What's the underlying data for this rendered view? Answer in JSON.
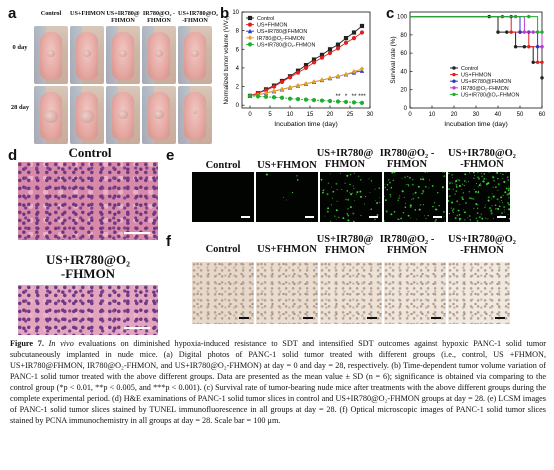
{
  "panel_letters": {
    "a": "a",
    "b": "b",
    "c": "c",
    "d": "d",
    "e": "e",
    "f": "f"
  },
  "panel_a": {
    "columns": [
      "Control",
      "US+FHMON",
      "US+IR780@ FHMON",
      "IR780@O₂ -FHMON",
      "US+IR780@O₂ -FHMON"
    ],
    "rows": [
      "0 day",
      "28 day"
    ]
  },
  "panel_e": {
    "columns": [
      "Control",
      "US+FHMON",
      "US+IR780@ FHMON",
      "IR780@O₂ -FHMON",
      "US+IR780@O₂ -FHMON"
    ]
  },
  "panel_f": {
    "columns": [
      "Control",
      "US+FHMON",
      "US+IR780@ FHMON",
      "IR780@O₂ -FHMON",
      "US+IR780@O₂ -FHMON"
    ]
  },
  "panel_d": {
    "top_title": "Control",
    "bottom_title_l1": "US+IR780@O₂",
    "bottom_title_l2": "-FHMON"
  },
  "chart_data": [
    {
      "type": "line",
      "panel": "b",
      "xlabel": "Incubation time (day)",
      "ylabel": "Normalized tumor volume (V/V₀)",
      "xlim": [
        -2,
        30
      ],
      "ylim": [
        -0.3,
        10
      ],
      "xticks": [
        0,
        5,
        10,
        15,
        20,
        25,
        30
      ],
      "yticks": [
        0,
        2,
        4,
        6,
        8,
        10
      ],
      "x": [
        0,
        2,
        4,
        6,
        8,
        10,
        12,
        14,
        16,
        18,
        20,
        22,
        24,
        26,
        28
      ],
      "significance": [
        {
          "x": 22,
          "label": "**"
        },
        {
          "x": 24,
          "label": "*"
        },
        {
          "x": 26,
          "label": "**"
        },
        {
          "x": 28,
          "label": "***"
        }
      ],
      "legend_position": "top-left",
      "series": [
        {
          "name": "Control",
          "color": "#222222",
          "marker": "square",
          "values": [
            1.0,
            1.3,
            1.7,
            2.1,
            2.6,
            3.1,
            3.7,
            4.3,
            4.9,
            5.4,
            6.0,
            6.5,
            7.2,
            7.8,
            8.5
          ]
        },
        {
          "name": "US+FHMON",
          "color": "#e0201c",
          "marker": "circle",
          "values": [
            1.0,
            1.3,
            1.6,
            2.0,
            2.5,
            3.0,
            3.5,
            4.0,
            4.6,
            5.1,
            5.6,
            6.1,
            6.7,
            7.2,
            7.8
          ]
        },
        {
          "name": "US+IR780@FHMON",
          "color": "#2a36c9",
          "marker": "triangle",
          "values": [
            1.0,
            1.1,
            1.3,
            1.5,
            1.7,
            1.9,
            2.1,
            2.3,
            2.5,
            2.7,
            2.9,
            3.1,
            3.3,
            3.5,
            3.7
          ]
        },
        {
          "name": "IR780@O₂-FHMON",
          "color": "#e5a020",
          "marker": "diamond",
          "values": [
            1.0,
            1.1,
            1.3,
            1.5,
            1.7,
            1.9,
            2.1,
            2.3,
            2.5,
            2.7,
            2.9,
            3.1,
            3.3,
            3.6,
            3.9
          ]
        },
        {
          "name": "US+IR780@O₂-FHMON",
          "color": "#1fae2c",
          "marker": "circle",
          "values": [
            1.0,
            0.95,
            0.9,
            0.85,
            0.8,
            0.7,
            0.65,
            0.6,
            0.55,
            0.5,
            0.45,
            0.4,
            0.35,
            0.3,
            0.25
          ]
        }
      ]
    },
    {
      "type": "line",
      "panel": "c",
      "xlabel": "Incubation time (day)",
      "ylabel": "Survival rate (%)",
      "xlim": [
        0,
        60
      ],
      "ylim": [
        0,
        105
      ],
      "xticks": [
        0,
        10,
        20,
        30,
        40,
        50,
        60
      ],
      "yticks": [
        0,
        20,
        40,
        60,
        80,
        100
      ],
      "legend_position": "bottom-right",
      "series": [
        {
          "name": "Control",
          "color": "#222222",
          "x": [
            0,
            36,
            40,
            44,
            48,
            52,
            56,
            60
          ],
          "values": [
            100,
            100,
            83,
            83,
            67,
            67,
            50,
            33
          ]
        },
        {
          "name": "US+FHMON",
          "color": "#e0201c",
          "x": [
            0,
            42,
            46,
            50,
            54,
            58,
            60
          ],
          "values": [
            100,
            100,
            83,
            83,
            67,
            50,
            50
          ]
        },
        {
          "name": "US+IR780@FHMON",
          "color": "#2a36c9",
          "x": [
            0,
            46,
            50,
            54,
            58,
            60
          ],
          "values": [
            100,
            100,
            83,
            83,
            67,
            67
          ]
        },
        {
          "name": "IR780@O₂-FHMON",
          "color": "#c23bd0",
          "x": [
            0,
            48,
            52,
            56,
            60
          ],
          "values": [
            100,
            100,
            83,
            83,
            67
          ]
        },
        {
          "name": "US+IR780@O₂-FHMON",
          "color": "#1fae2c",
          "x": [
            0,
            54,
            58,
            60
          ],
          "values": [
            100,
            100,
            83,
            83
          ]
        }
      ]
    }
  ],
  "caption": {
    "head": "Figure 7.",
    "intro": "In vivo",
    "text": " evaluations on diminished hypoxia-induced resistance to SDT and intensified SDT outcomes against hypoxic PANC-1 solid tumor subcutaneously implanted in nude mice. (a) Digital photos of PANC-1 solid tumor treated with different groups (i.e., control, US +FHMON, US+IR780@FHMON, IR780@O₂-FHMON, and US+IR780@O₂-FHMON) at day = 0 and day = 28, respectively. (b) Time-dependent tumor volume variation of PANC-1 solid tumor treated with the above different groups. Data are presented as the mean value ± SD (n = 6); significance is obtained via comparing to the control group (*p < 0.01, **p < 0.005, and ***p < 0.001). (c) Survival rate of tumor-bearing nude mice after treatments with the above different groups during the complete experimental period. (d) H&E examinations of PANC-1 solid tumor slices in control and US+IR780@O₂-FHMON groups at day = 28. (e) LCSM images of PANC-1 solid tumor slices stained by TUNEL immunofluorescence in all groups at day = 28. (f) Optical microscopic images of PANC-1 solid tumor slices stained by PCNA immunochemistry in all groups at day = 28. Scale bar = 100 μm."
  }
}
